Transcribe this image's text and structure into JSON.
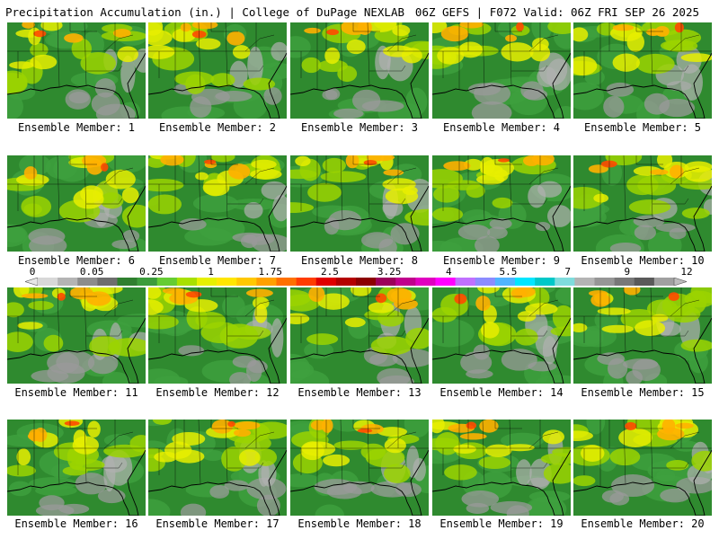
{
  "header": {
    "product_title": "Precipitation Accumulation (in.) | College of DuPage NEXLAB",
    "run_info": "06Z GEFS | F072 Valid: 06Z FRI SEP 26 2025"
  },
  "legend": {
    "tick_labels": [
      "0",
      "0.05",
      "0.25",
      "1",
      "1.75",
      "2.5",
      "3.25",
      "4",
      "5.5",
      "7",
      "9",
      "12"
    ],
    "colors": [
      "#d8d8d8",
      "#b4b4b4",
      "#8c8c8c",
      "#6e6e6e",
      "#2f7f2f",
      "#3c9c3c",
      "#66cc33",
      "#a8e000",
      "#e6f000",
      "#ffe600",
      "#ffc800",
      "#ffa000",
      "#ff7000",
      "#ff3c00",
      "#e00000",
      "#b40000",
      "#8c0000",
      "#9c005a",
      "#c0008c",
      "#e000c0",
      "#ff00ff",
      "#c070ff",
      "#8c8cff",
      "#50b4ff",
      "#00e6ff",
      "#00c8c8",
      "#7fdcdc",
      "#b4b4b4",
      "#969696",
      "#787878",
      "#5a5a5a",
      "#a0a0a0"
    ]
  },
  "members": [
    {
      "label": "Ensemble Member: 1"
    },
    {
      "label": "Ensemble Member: 2"
    },
    {
      "label": "Ensemble Member: 3"
    },
    {
      "label": "Ensemble Member: 4"
    },
    {
      "label": "Ensemble Member: 5"
    },
    {
      "label": "Ensemble Member: 6"
    },
    {
      "label": "Ensemble Member: 7"
    },
    {
      "label": "Ensemble Member: 8"
    },
    {
      "label": "Ensemble Member: 9"
    },
    {
      "label": "Ensemble Member: 10"
    },
    {
      "label": "Ensemble Member: 11"
    },
    {
      "label": "Ensemble Member: 12"
    },
    {
      "label": "Ensemble Member: 13"
    },
    {
      "label": "Ensemble Member: 14"
    },
    {
      "label": "Ensemble Member: 15"
    },
    {
      "label": "Ensemble Member: 16"
    },
    {
      "label": "Ensemble Member: 17"
    },
    {
      "label": "Ensemble Member: 18"
    },
    {
      "label": "Ensemble Member: 19"
    },
    {
      "label": "Ensemble Member: 20"
    }
  ]
}
